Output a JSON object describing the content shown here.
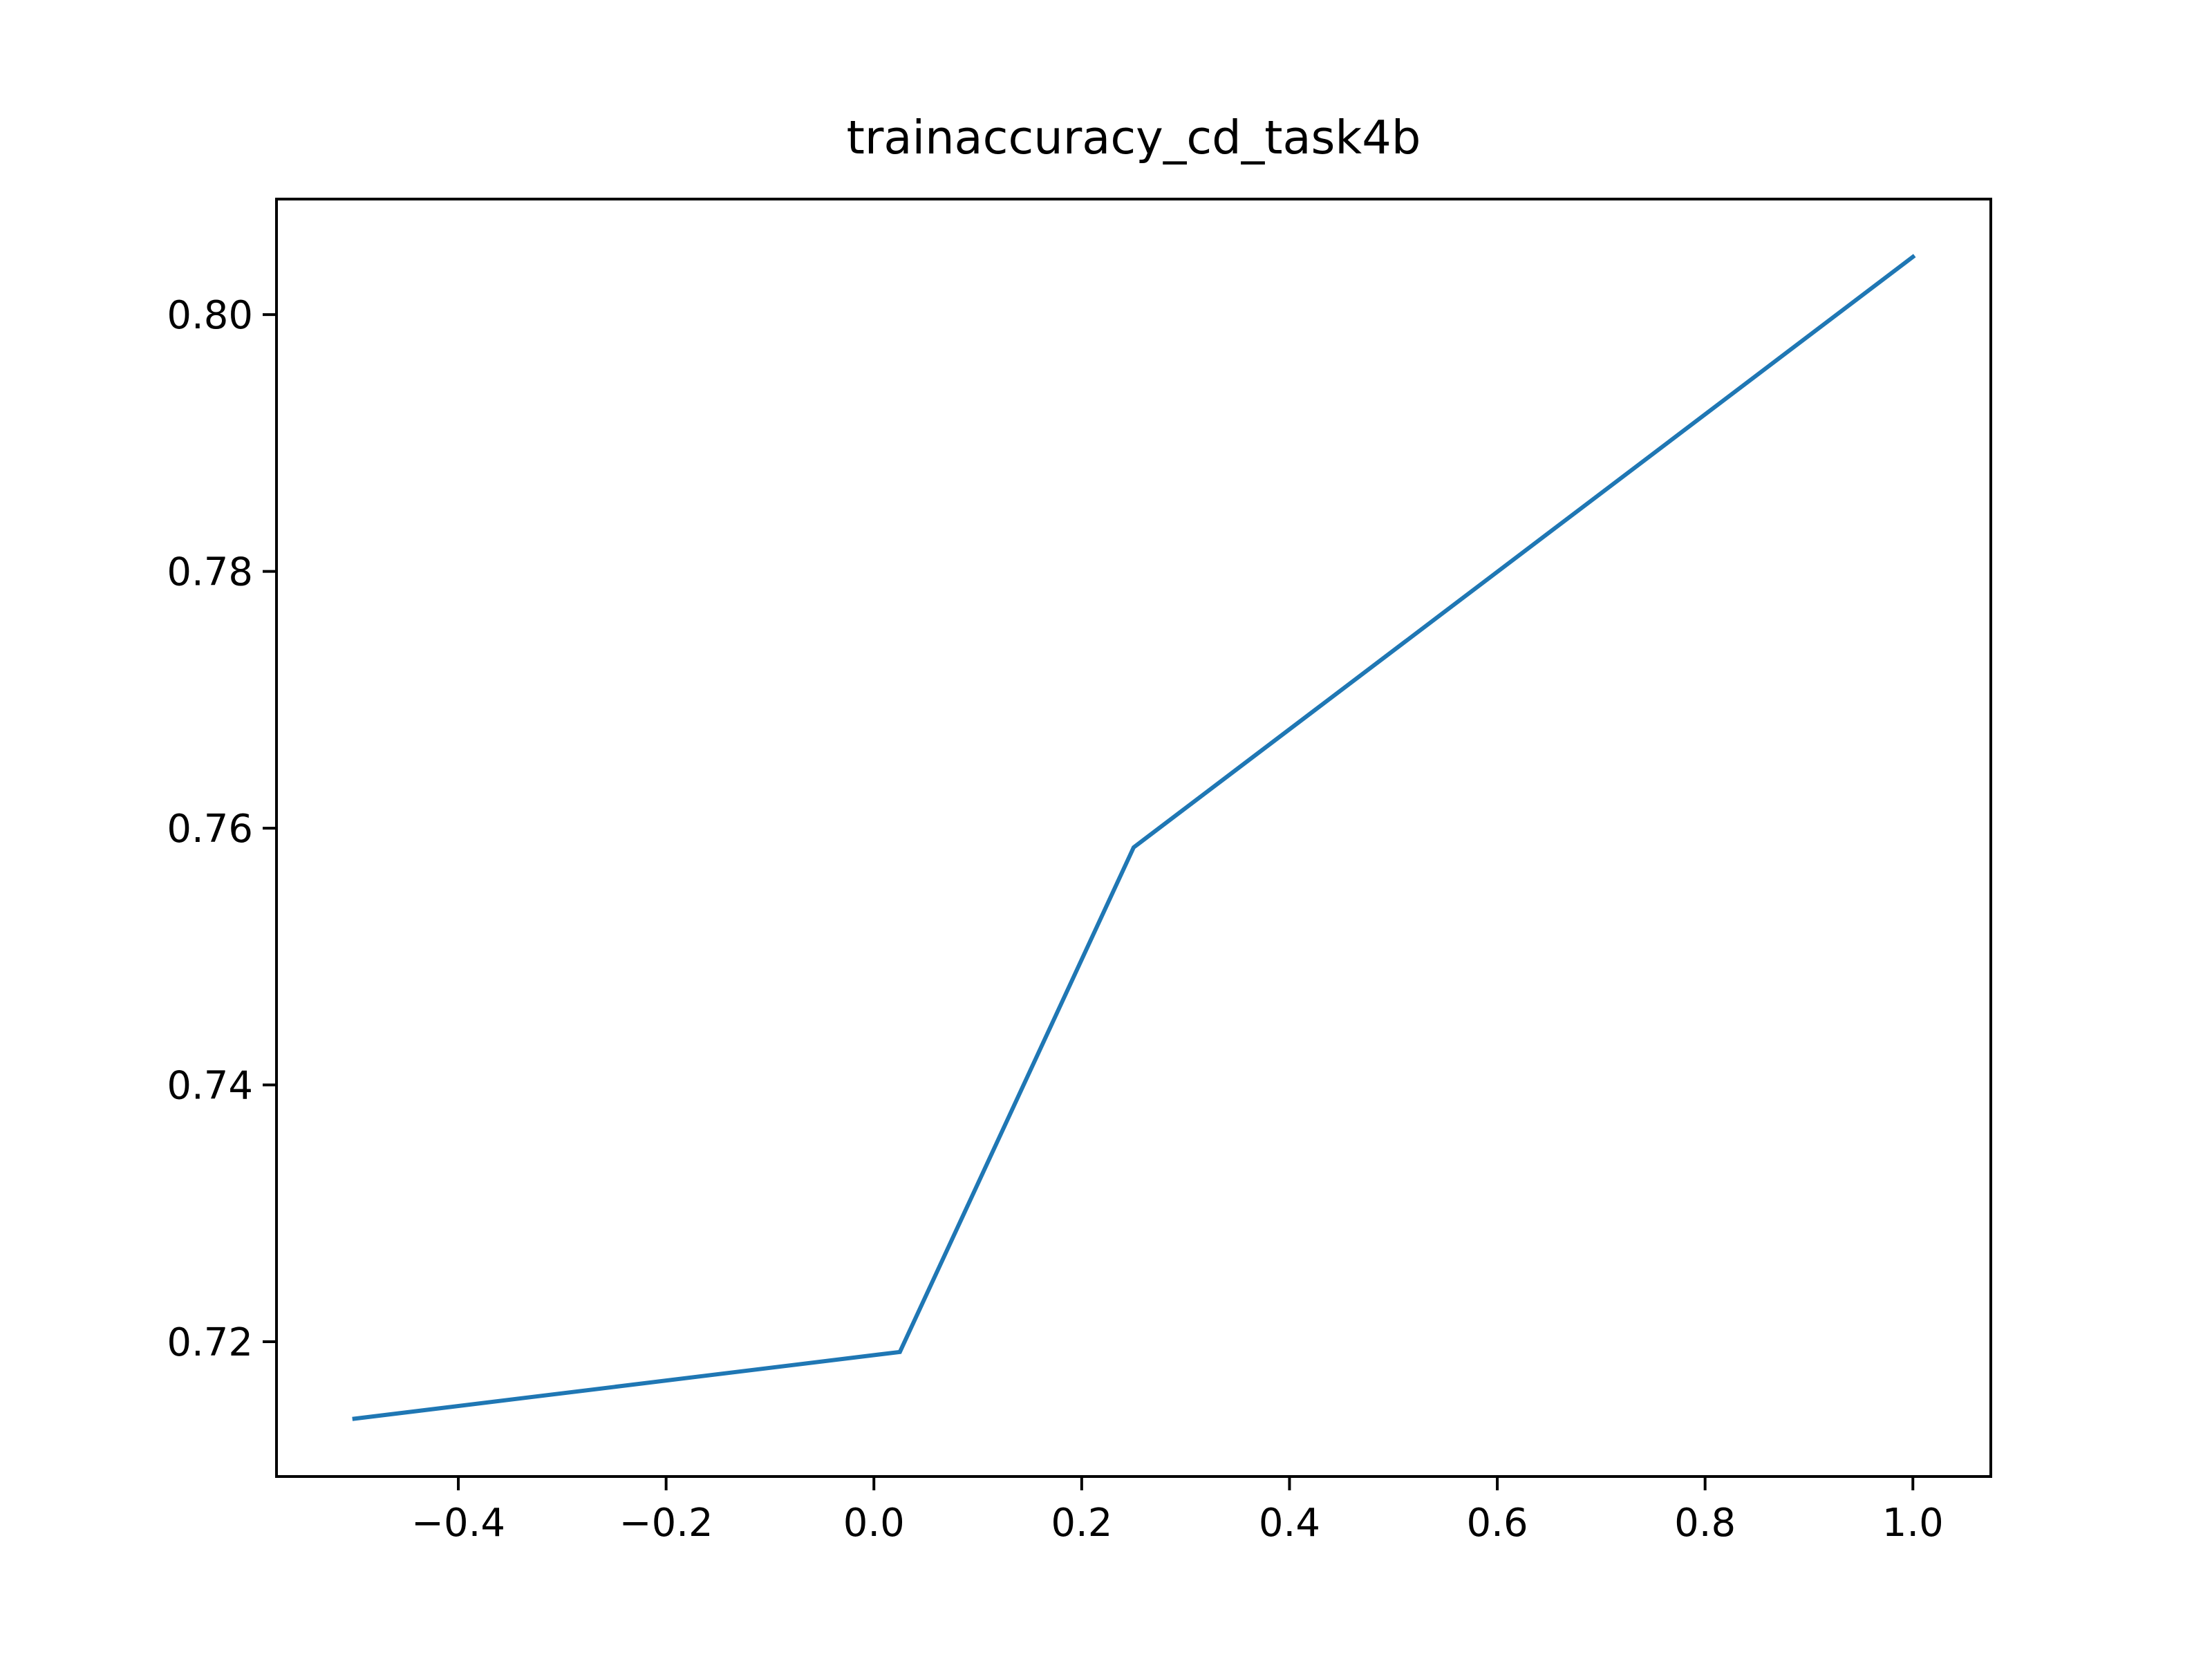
{
  "chart_data": {
    "type": "line",
    "title": "trainaccuracy_cd_task4b",
    "xlabel": "",
    "ylabel": "",
    "xlim": [
      -0.575,
      1.075
    ],
    "ylim": [
      0.7095,
      0.809
    ],
    "grid": false,
    "x_ticks": [
      -0.4,
      -0.2,
      0.0,
      0.2,
      0.4,
      0.6,
      0.8,
      1.0
    ],
    "x_tick_labels": [
      "−0.4",
      "−0.2",
      "0.0",
      "0.2",
      "0.4",
      "0.6",
      "0.8",
      "1.0"
    ],
    "y_ticks": [
      0.72,
      0.74,
      0.76,
      0.78,
      0.8
    ],
    "y_tick_labels": [
      "0.72",
      "0.74",
      "0.76",
      "0.78",
      "0.80"
    ],
    "series": [
      {
        "color": "#1f77b4",
        "x": [
          -0.5,
          0.025,
          0.25,
          1.0
        ],
        "y": [
          0.714,
          0.7192,
          0.7585,
          0.8045
        ]
      }
    ]
  }
}
